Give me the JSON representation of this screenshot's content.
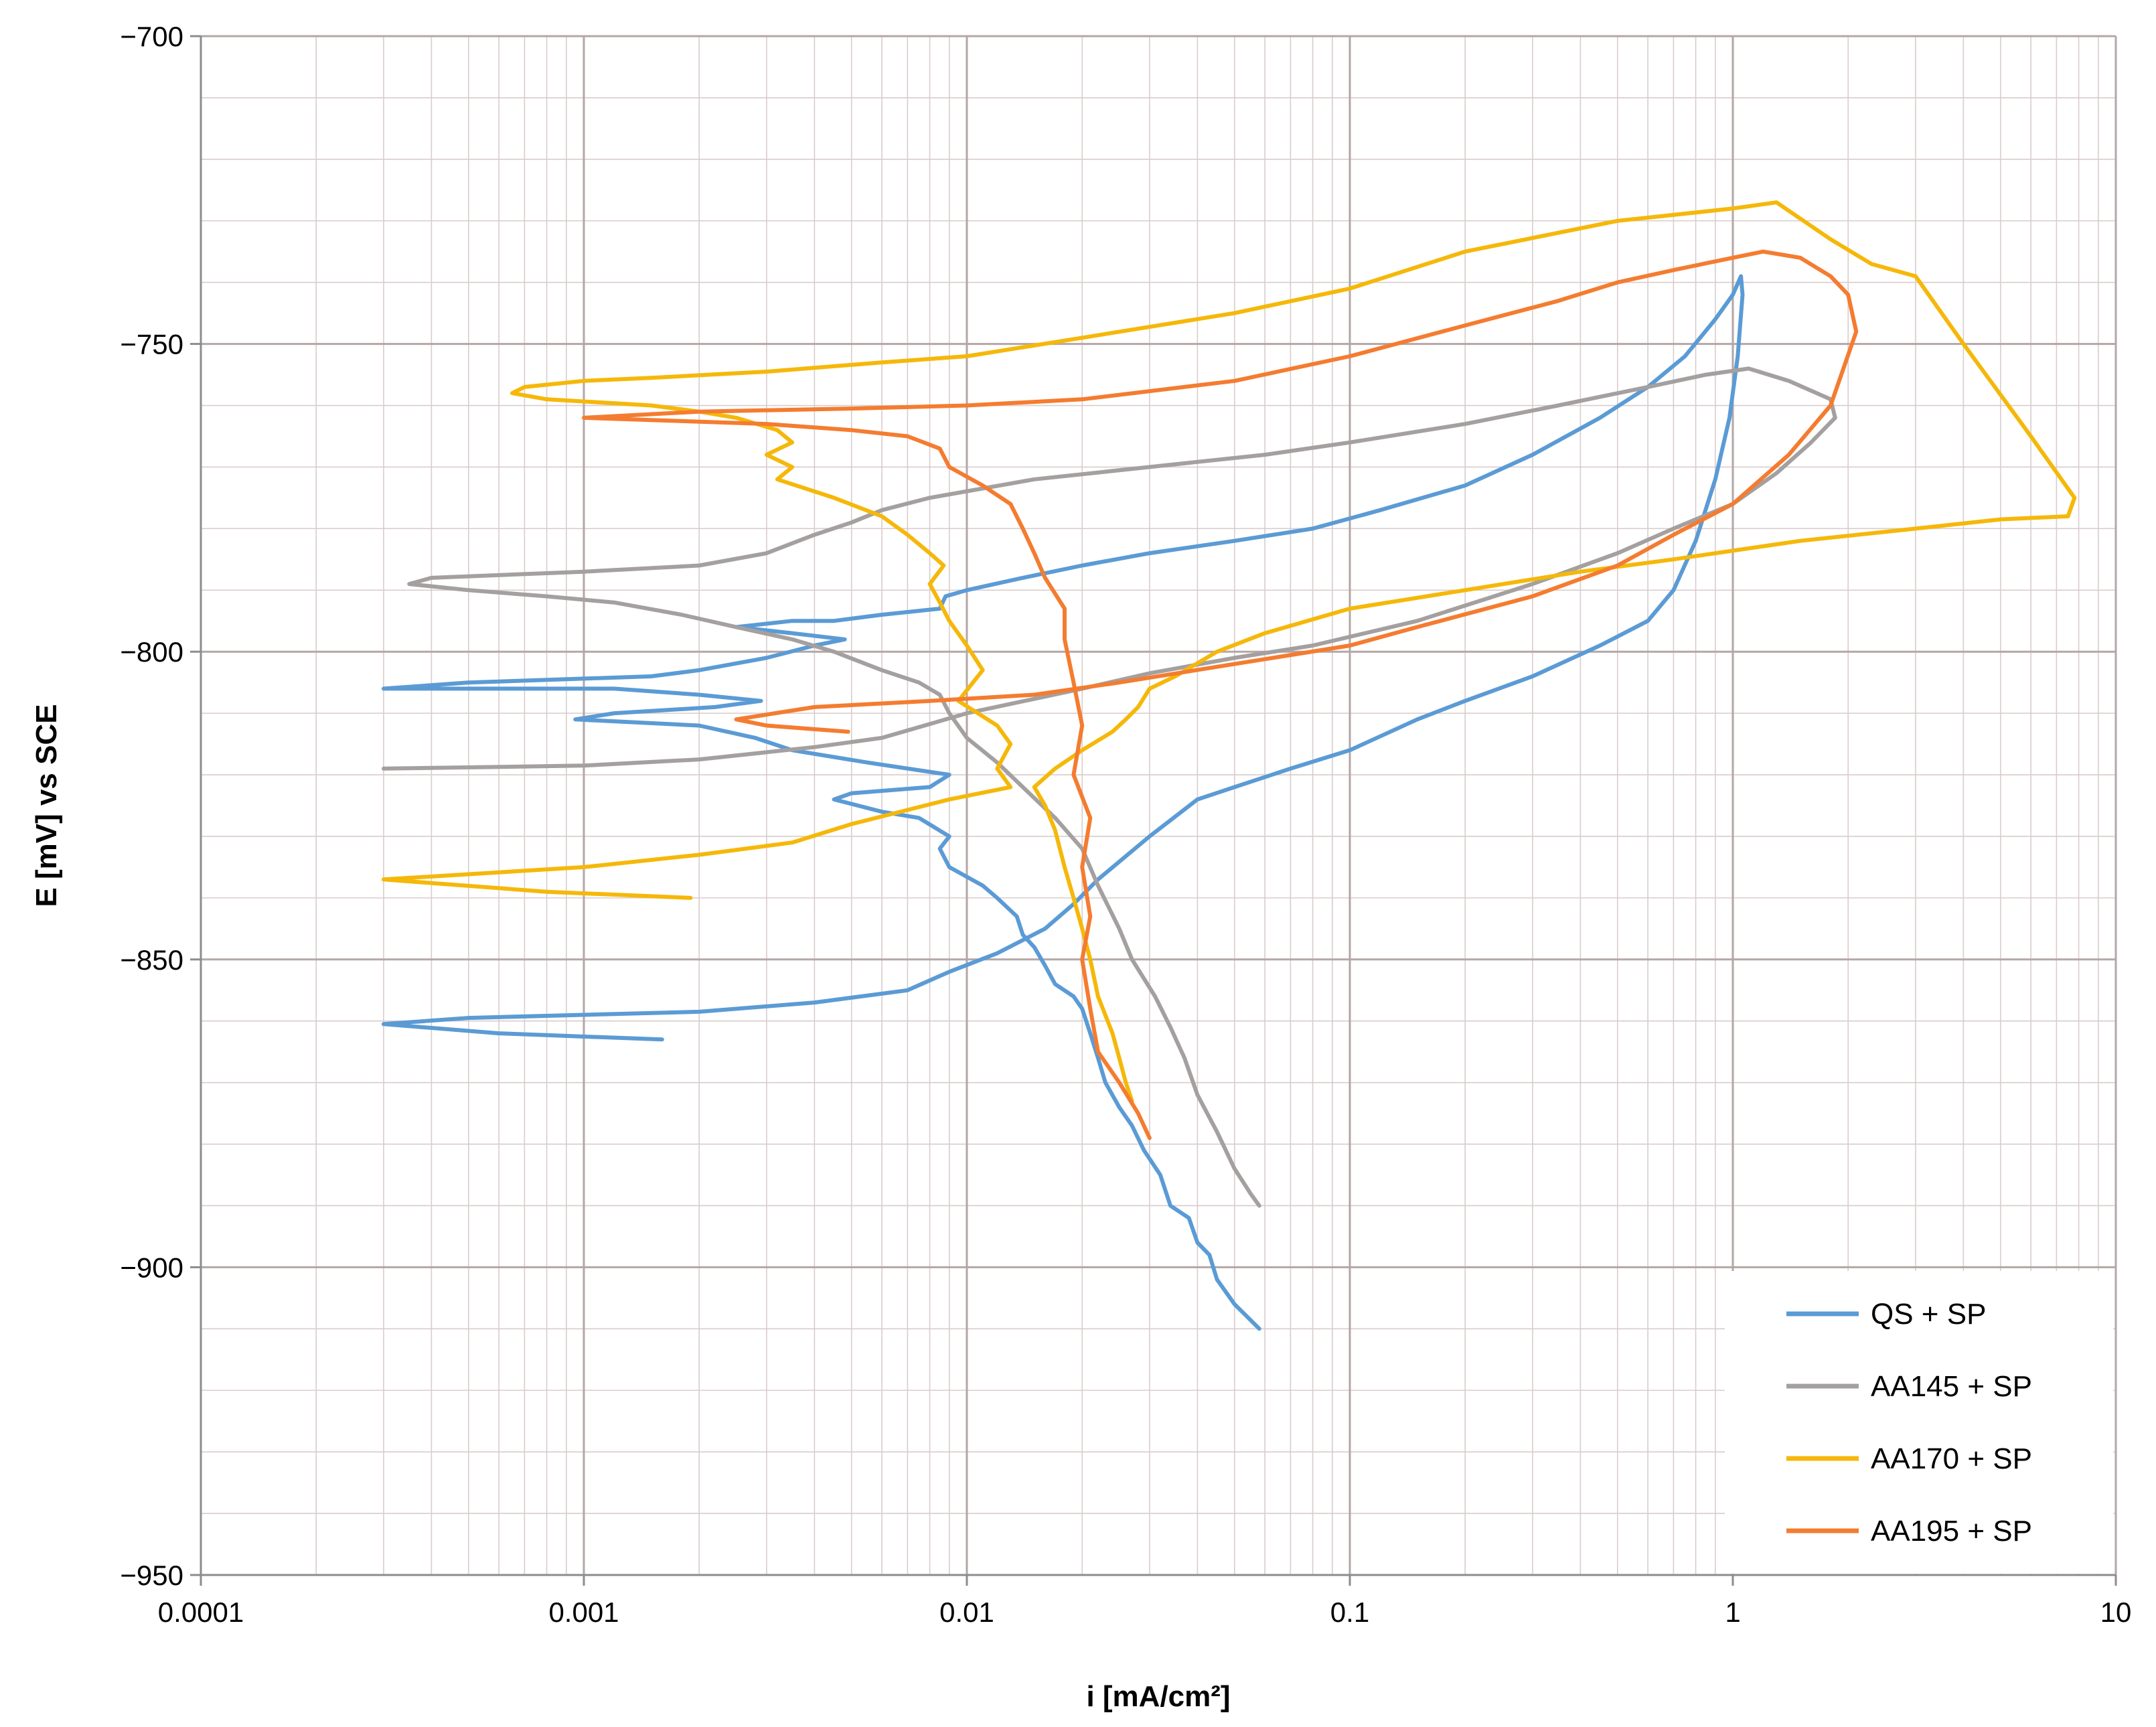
{
  "chart_data": {
    "type": "line",
    "title": "",
    "xlabel": "i [mA/cm²]",
    "ylabel": "E [mV] vs SCE",
    "x_scale": "log",
    "xlim": [
      0.0001,
      10
    ],
    "ylim": [
      -950,
      -700
    ],
    "x_ticks": [
      0.0001,
      0.001,
      0.01,
      0.1,
      1,
      10
    ],
    "x_tick_labels": [
      "0.0001",
      "0.001",
      "0.01",
      "0.1",
      "1",
      "10"
    ],
    "y_ticks": [
      -700,
      -750,
      -800,
      -850,
      -900,
      -950
    ],
    "y_tick_labels": [
      "−700",
      "−750",
      "−800",
      "−850",
      "−900",
      "−950"
    ],
    "y_minor_step": 10,
    "grid": true,
    "legend_position": "bottom-right",
    "series": [
      {
        "name": "QS + SP",
        "color": "#5B9BD5",
        "points": [
          [
            0.058,
            -910
          ],
          [
            0.05,
            -906
          ],
          [
            0.045,
            -902
          ],
          [
            0.043,
            -898
          ],
          [
            0.04,
            -896
          ],
          [
            0.038,
            -892
          ],
          [
            0.034,
            -890
          ],
          [
            0.032,
            -885
          ],
          [
            0.029,
            -881
          ],
          [
            0.027,
            -877
          ],
          [
            0.025,
            -874
          ],
          [
            0.023,
            -870
          ],
          [
            0.022,
            -866
          ],
          [
            0.021,
            -862
          ],
          [
            0.02,
            -858
          ],
          [
            0.019,
            -856
          ],
          [
            0.017,
            -854
          ],
          [
            0.016,
            -851
          ],
          [
            0.015,
            -848
          ],
          [
            0.014,
            -846
          ],
          [
            0.0135,
            -843
          ],
          [
            0.012,
            -840
          ],
          [
            0.011,
            -838
          ],
          [
            0.009,
            -835
          ],
          [
            0.0085,
            -832
          ],
          [
            0.009,
            -830
          ],
          [
            0.0075,
            -827
          ],
          [
            0.006,
            -826
          ],
          [
            0.0045,
            -824
          ],
          [
            0.005,
            -823
          ],
          [
            0.008,
            -822
          ],
          [
            0.009,
            -820
          ],
          [
            0.0055,
            -818
          ],
          [
            0.0035,
            -816
          ],
          [
            0.0028,
            -814
          ],
          [
            0.002,
            -812
          ],
          [
            0.00095,
            -811
          ],
          [
            0.0012,
            -810
          ],
          [
            0.0022,
            -809
          ],
          [
            0.0029,
            -808
          ],
          [
            0.002,
            -807
          ],
          [
            0.0012,
            -806
          ],
          [
            0.0003,
            -806
          ],
          [
            0.0005,
            -805
          ],
          [
            0.0015,
            -804
          ],
          [
            0.002,
            -803
          ],
          [
            0.003,
            -801
          ],
          [
            0.004,
            -799
          ],
          [
            0.0048,
            -798
          ],
          [
            0.0035,
            -797
          ],
          [
            0.0025,
            -796
          ],
          [
            0.0035,
            -795
          ],
          [
            0.0045,
            -795
          ],
          [
            0.006,
            -794
          ],
          [
            0.0085,
            -793
          ],
          [
            0.0088,
            -791
          ],
          [
            0.01,
            -790
          ],
          [
            0.014,
            -788
          ],
          [
            0.02,
            -786
          ],
          [
            0.03,
            -784
          ],
          [
            0.05,
            -782
          ],
          [
            0.08,
            -780
          ],
          [
            0.12,
            -777
          ],
          [
            0.2,
            -773
          ],
          [
            0.3,
            -768
          ],
          [
            0.45,
            -762
          ],
          [
            0.6,
            -757
          ],
          [
            0.75,
            -752
          ],
          [
            0.9,
            -746
          ],
          [
            1.0,
            -742
          ],
          [
            1.05,
            -739
          ],
          [
            1.06,
            -742
          ],
          [
            1.03,
            -752
          ],
          [
            0.98,
            -762
          ],
          [
            0.9,
            -772
          ],
          [
            0.8,
            -782
          ],
          [
            0.7,
            -790
          ],
          [
            0.6,
            -795
          ],
          [
            0.45,
            -799
          ],
          [
            0.3,
            -804
          ],
          [
            0.2,
            -808
          ],
          [
            0.15,
            -811
          ],
          [
            0.1,
            -816
          ],
          [
            0.07,
            -819
          ],
          [
            0.05,
            -822
          ],
          [
            0.04,
            -824
          ],
          [
            0.03,
            -830
          ],
          [
            0.022,
            -837
          ],
          [
            0.019,
            -841
          ],
          [
            0.016,
            -845
          ],
          [
            0.012,
            -849
          ],
          [
            0.009,
            -852
          ],
          [
            0.007,
            -855
          ],
          [
            0.004,
            -857
          ],
          [
            0.002,
            -858.5
          ],
          [
            0.001,
            -859
          ],
          [
            0.0005,
            -859.5
          ],
          [
            0.0003,
            -860.5
          ],
          [
            0.0006,
            -862
          ],
          [
            0.0016,
            -863
          ]
        ]
      },
      {
        "name": "AA145 + SP",
        "color": "#A5A0A0",
        "points": [
          [
            0.058,
            -890
          ],
          [
            0.055,
            -888
          ],
          [
            0.05,
            -884
          ],
          [
            0.045,
            -878
          ],
          [
            0.04,
            -872
          ],
          [
            0.037,
            -866
          ],
          [
            0.034,
            -861
          ],
          [
            0.031,
            -856
          ],
          [
            0.027,
            -850
          ],
          [
            0.025,
            -845
          ],
          [
            0.022,
            -838
          ],
          [
            0.02,
            -832
          ],
          [
            0.017,
            -827
          ],
          [
            0.014,
            -822
          ],
          [
            0.012,
            -818
          ],
          [
            0.01,
            -814
          ],
          [
            0.009,
            -810
          ],
          [
            0.0085,
            -807
          ],
          [
            0.0075,
            -805
          ],
          [
            0.006,
            -803
          ],
          [
            0.0045,
            -800
          ],
          [
            0.0035,
            -798
          ],
          [
            0.0025,
            -796
          ],
          [
            0.0018,
            -794
          ],
          [
            0.0012,
            -792
          ],
          [
            0.0008,
            -791
          ],
          [
            0.0005,
            -790
          ],
          [
            0.00035,
            -789
          ],
          [
            0.0004,
            -788
          ],
          [
            0.001,
            -787
          ],
          [
            0.002,
            -786
          ],
          [
            0.003,
            -784
          ],
          [
            0.004,
            -781
          ],
          [
            0.005,
            -779
          ],
          [
            0.006,
            -777
          ],
          [
            0.008,
            -775
          ],
          [
            0.015,
            -772
          ],
          [
            0.03,
            -770
          ],
          [
            0.06,
            -768
          ],
          [
            0.1,
            -766
          ],
          [
            0.2,
            -763
          ],
          [
            0.35,
            -760
          ],
          [
            0.6,
            -757
          ],
          [
            0.85,
            -755
          ],
          [
            1.1,
            -754
          ],
          [
            1.4,
            -756
          ],
          [
            1.8,
            -759
          ],
          [
            1.85,
            -762
          ],
          [
            1.6,
            -766
          ],
          [
            1.3,
            -771
          ],
          [
            1.0,
            -776
          ],
          [
            0.7,
            -780
          ],
          [
            0.5,
            -784
          ],
          [
            0.3,
            -789
          ],
          [
            0.15,
            -795
          ],
          [
            0.08,
            -799
          ],
          [
            0.05,
            -801
          ],
          [
            0.03,
            -803.5
          ],
          [
            0.02,
            -806
          ],
          [
            0.01,
            -810
          ],
          [
            0.006,
            -814
          ],
          [
            0.004,
            -815.5
          ],
          [
            0.002,
            -817.5
          ],
          [
            0.001,
            -818.5
          ],
          [
            0.0003,
            -819
          ]
        ]
      },
      {
        "name": "AA170 + SP",
        "color": "#F5B80A",
        "points": [
          [
            0.027,
            -873
          ],
          [
            0.026,
            -870
          ],
          [
            0.025,
            -866
          ],
          [
            0.024,
            -862
          ],
          [
            0.022,
            -856
          ],
          [
            0.021,
            -850
          ],
          [
            0.02,
            -845
          ],
          [
            0.019,
            -840
          ],
          [
            0.018,
            -835
          ],
          [
            0.017,
            -829
          ],
          [
            0.016,
            -825
          ],
          [
            0.015,
            -822
          ],
          [
            0.017,
            -819
          ],
          [
            0.02,
            -816
          ],
          [
            0.024,
            -813
          ],
          [
            0.026,
            -811
          ],
          [
            0.028,
            -809
          ],
          [
            0.03,
            -806
          ],
          [
            0.035,
            -804
          ],
          [
            0.045,
            -800
          ],
          [
            0.06,
            -797
          ],
          [
            0.1,
            -793
          ],
          [
            0.2,
            -790
          ],
          [
            0.4,
            -787
          ],
          [
            0.7,
            -785
          ],
          [
            1.5,
            -782
          ],
          [
            3.0,
            -780
          ],
          [
            5.0,
            -778.5
          ],
          [
            7.5,
            -778
          ],
          [
            7.8,
            -775
          ],
          [
            6.0,
            -765
          ],
          [
            4.0,
            -750
          ],
          [
            3.0,
            -739
          ],
          [
            2.3,
            -737
          ],
          [
            1.8,
            -733
          ],
          [
            1.3,
            -727
          ],
          [
            1.0,
            -728
          ],
          [
            0.5,
            -730
          ],
          [
            0.2,
            -735
          ],
          [
            0.1,
            -741
          ],
          [
            0.05,
            -745
          ],
          [
            0.02,
            -749
          ],
          [
            0.01,
            -752
          ],
          [
            0.006,
            -753
          ],
          [
            0.003,
            -754.5
          ],
          [
            0.0015,
            -755.5
          ],
          [
            0.001,
            -756
          ],
          [
            0.0007,
            -757
          ],
          [
            0.00065,
            -758
          ],
          [
            0.0008,
            -759
          ],
          [
            0.0015,
            -760
          ],
          [
            0.002,
            -761
          ],
          [
            0.0025,
            -762
          ],
          [
            0.0032,
            -764
          ],
          [
            0.0035,
            -766
          ],
          [
            0.003,
            -768
          ],
          [
            0.0035,
            -770
          ],
          [
            0.0032,
            -772
          ],
          [
            0.0045,
            -775
          ],
          [
            0.006,
            -778
          ],
          [
            0.007,
            -781
          ],
          [
            0.008,
            -784
          ],
          [
            0.0087,
            -786
          ],
          [
            0.008,
            -789
          ],
          [
            0.0085,
            -792
          ],
          [
            0.009,
            -795
          ],
          [
            0.01,
            -799
          ],
          [
            0.011,
            -803
          ],
          [
            0.0095,
            -808
          ],
          [
            0.012,
            -812
          ],
          [
            0.013,
            -815
          ],
          [
            0.012,
            -819
          ],
          [
            0.013,
            -822
          ],
          [
            0.009,
            -824
          ],
          [
            0.005,
            -828
          ],
          [
            0.0035,
            -831
          ],
          [
            0.002,
            -833
          ],
          [
            0.001,
            -835
          ],
          [
            0.0003,
            -837
          ],
          [
            0.0008,
            -839
          ],
          [
            0.0019,
            -840
          ]
        ]
      },
      {
        "name": "AA195 + SP",
        "color": "#F47C30",
        "points": [
          [
            0.03,
            -879
          ],
          [
            0.028,
            -875
          ],
          [
            0.025,
            -870
          ],
          [
            0.022,
            -865
          ],
          [
            0.021,
            -858
          ],
          [
            0.02,
            -850
          ],
          [
            0.021,
            -843
          ],
          [
            0.02,
            -835
          ],
          [
            0.021,
            -827
          ],
          [
            0.019,
            -820
          ],
          [
            0.02,
            -812
          ],
          [
            0.019,
            -805
          ],
          [
            0.018,
            -798
          ],
          [
            0.018,
            -793
          ],
          [
            0.016,
            -788
          ],
          [
            0.015,
            -784
          ],
          [
            0.014,
            -780
          ],
          [
            0.013,
            -776
          ],
          [
            0.011,
            -773
          ],
          [
            0.009,
            -770
          ],
          [
            0.0085,
            -767
          ],
          [
            0.007,
            -765
          ],
          [
            0.005,
            -764
          ],
          [
            0.003,
            -763
          ],
          [
            0.001,
            -762
          ],
          [
            0.002,
            -761
          ],
          [
            0.005,
            -760.5
          ],
          [
            0.01,
            -760
          ],
          [
            0.02,
            -759
          ],
          [
            0.05,
            -756
          ],
          [
            0.1,
            -752
          ],
          [
            0.2,
            -747
          ],
          [
            0.35,
            -743
          ],
          [
            0.5,
            -740
          ],
          [
            0.7,
            -738
          ],
          [
            1.0,
            -736
          ],
          [
            1.2,
            -735
          ],
          [
            1.5,
            -736
          ],
          [
            1.8,
            -739
          ],
          [
            2.0,
            -742
          ],
          [
            2.1,
            -748
          ],
          [
            1.8,
            -760
          ],
          [
            1.4,
            -768
          ],
          [
            1.0,
            -776
          ],
          [
            0.7,
            -781
          ],
          [
            0.5,
            -786
          ],
          [
            0.3,
            -791
          ],
          [
            0.15,
            -796
          ],
          [
            0.1,
            -799
          ],
          [
            0.05,
            -802
          ],
          [
            0.025,
            -805
          ],
          [
            0.015,
            -807
          ],
          [
            0.008,
            -808
          ],
          [
            0.004,
            -809
          ],
          [
            0.0025,
            -811
          ],
          [
            0.003,
            -812
          ],
          [
            0.0049,
            -813
          ]
        ]
      }
    ]
  }
}
